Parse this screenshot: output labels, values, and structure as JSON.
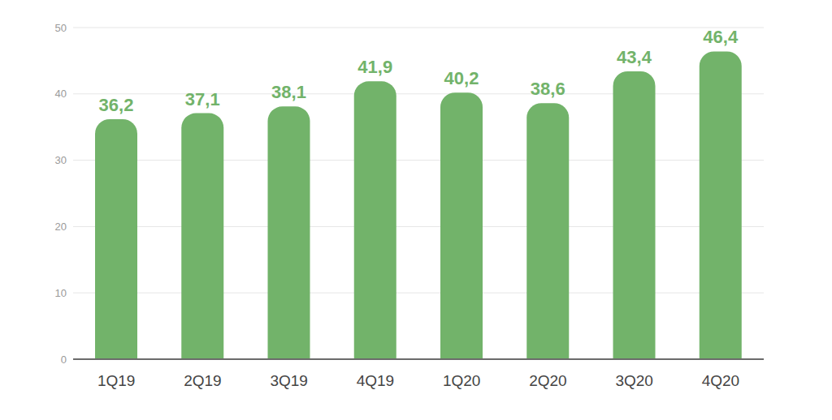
{
  "chart_data": {
    "type": "bar",
    "categories": [
      "1Q19",
      "2Q19",
      "3Q19",
      "4Q19",
      "1Q20",
      "2Q20",
      "3Q20",
      "4Q20"
    ],
    "values": [
      36.2,
      37.1,
      38.1,
      41.9,
      40.2,
      38.6,
      43.4,
      46.4
    ],
    "value_labels": [
      "36,2",
      "37,1",
      "38,1",
      "41,9",
      "40,2",
      "38,6",
      "43,4",
      "46,4"
    ],
    "color": "#72b36a",
    "ylim": [
      0,
      50
    ],
    "yticks": [
      0,
      10,
      20,
      30,
      40,
      50
    ],
    "grid": true,
    "data_labels": true
  }
}
